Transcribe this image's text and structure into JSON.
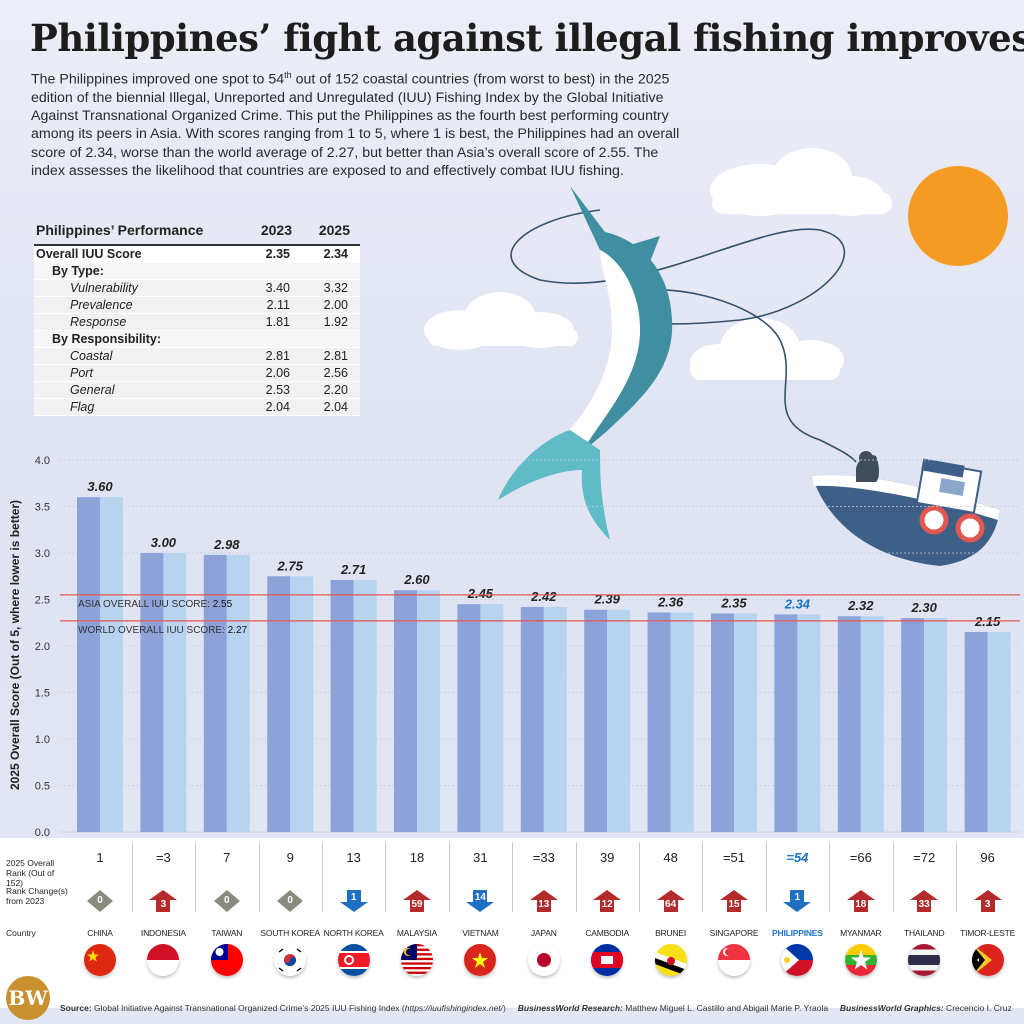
{
  "title": "Philippines’ fight against illegal fishing improves",
  "intro": {
    "part1": "The Philippines improved one spot to 54",
    "sup": "th",
    "part2": " out of 152 coastal countries (from worst to best) in the 2025 edition of the biennial Illegal, Unreported and Unregulated (IUU) Fishing Index by the Global Initiative Against Transnational Organized Crime. This put the Philippines as the fourth best performing country among its peers in Asia. With scores ranging from 1 to 5, where 1 is best, the Philippines had an overall score of 2.34, worse than the world average of 2.27, but better than Asia’s overall score of 2.55. The index assesses the likelihood that countries are exposed to and effectively combat IUU fishing."
  },
  "table": {
    "header": "Philippines’ Performance",
    "col1": "2023",
    "col2": "2025",
    "overall": {
      "label": "Overall IUU Score",
      "v2023": "2.35",
      "v2025": "2.34"
    },
    "by_type_label": "By Type:",
    "by_type": [
      {
        "label": "Vulnerability",
        "v2023": "3.40",
        "v2025": "3.32"
      },
      {
        "label": "Prevalence",
        "v2023": "2.11",
        "v2025": "2.00"
      },
      {
        "label": "Response",
        "v2023": "1.81",
        "v2025": "1.92"
      }
    ],
    "by_resp_label": "By Responsibility:",
    "by_resp": [
      {
        "label": "Coastal",
        "v2023": "2.81",
        "v2025": "2.81"
      },
      {
        "label": "Port",
        "v2023": "2.06",
        "v2025": "2.56"
      },
      {
        "label": "General",
        "v2023": "2.53",
        "v2025": "2.20"
      },
      {
        "label": "Flag",
        "v2023": "2.04",
        "v2025": "2.04"
      }
    ]
  },
  "chart_data": {
    "type": "bar",
    "ylabel": "2025 Overall Score (Out of 5, where lower is better)",
    "ylim": [
      0,
      4
    ],
    "yticks": [
      "0.0",
      "0.5",
      "1.0",
      "1.5",
      "2.0",
      "2.5",
      "3.0",
      "3.5",
      "4.0"
    ],
    "categories": [
      "CHINA",
      "INDONESIA",
      "TAIWAN",
      "SOUTH KOREA",
      "NORTH KOREA",
      "MALAYSIA",
      "VIETNAM",
      "JAPAN",
      "CAMBODIA",
      "BRUNEI",
      "SINGAPORE",
      "PHILIPPINES",
      "MYANMAR",
      "THAILAND",
      "TIMOR-LESTE"
    ],
    "values": [
      3.6,
      3.0,
      2.98,
      2.75,
      2.71,
      2.6,
      2.45,
      2.42,
      2.39,
      2.36,
      2.35,
      2.34,
      2.32,
      2.3,
      2.15
    ],
    "value_labels": [
      "3.60",
      "3.00",
      "2.98",
      "2.75",
      "2.71",
      "2.60",
      "2.45",
      "2.42",
      "2.39",
      "2.36",
      "2.35",
      "2.34",
      "2.32",
      "2.30",
      "2.15"
    ],
    "highlight": "PHILIPPINES",
    "reference_lines": [
      {
        "label": "ASIA OVERALL IUU SCORE: ",
        "value_text": "2.55",
        "value": 2.55
      },
      {
        "label": "WORLD OVERALL IUU SCORE: ",
        "value_text": "2.27",
        "value": 2.27
      }
    ],
    "bar_colors": {
      "dark": "#8ca2d9",
      "light": "#b7d3ef",
      "ref_line": "#e0584f",
      "highlight_text": "#1a73c8"
    }
  },
  "rows": {
    "rank_label": "2025 Overall Rank (Out of 152)",
    "change_label": "Rank Change(s) from 2023",
    "country_label": "Country",
    "ranks": [
      "1",
      "=3",
      "7",
      "9",
      "13",
      "18",
      "31",
      "=33",
      "39",
      "48",
      "=51",
      "=54",
      "=66",
      "=72",
      "96"
    ],
    "changes": [
      {
        "dir": "same",
        "text": "0"
      },
      {
        "dir": "up",
        "text": "3"
      },
      {
        "dir": "same",
        "text": "0"
      },
      {
        "dir": "same",
        "text": "0"
      },
      {
        "dir": "down",
        "text": "1"
      },
      {
        "dir": "up",
        "text": "59"
      },
      {
        "dir": "down",
        "text": "14"
      },
      {
        "dir": "up",
        "text": "13"
      },
      {
        "dir": "up",
        "text": "12"
      },
      {
        "dir": "up",
        "text": "64"
      },
      {
        "dir": "up",
        "text": "15"
      },
      {
        "dir": "down",
        "text": "1"
      },
      {
        "dir": "up",
        "text": "18"
      },
      {
        "dir": "up",
        "text": "33"
      },
      {
        "dir": "up",
        "text": "3"
      }
    ],
    "change_colors": {
      "up": "#b52a2a",
      "down": "#1f6fc2",
      "same": "#8a8a7e"
    }
  },
  "footer": {
    "source_label": "Source:",
    "source": " Global Initiative Against Transnational Organized Crime’s 2025 IUU Fishing Index (",
    "source_url": "https://iuufishingindex.net/",
    "source_end": ")",
    "research_label": "BusinessWorld Research:",
    "research": " Matthew Miguel L. Castillo and Abigail Marie P. Yraola",
    "graphics_label": "BusinessWorld Graphics:",
    "graphics": " Crecencio I. Cruz"
  },
  "logo": "BW"
}
